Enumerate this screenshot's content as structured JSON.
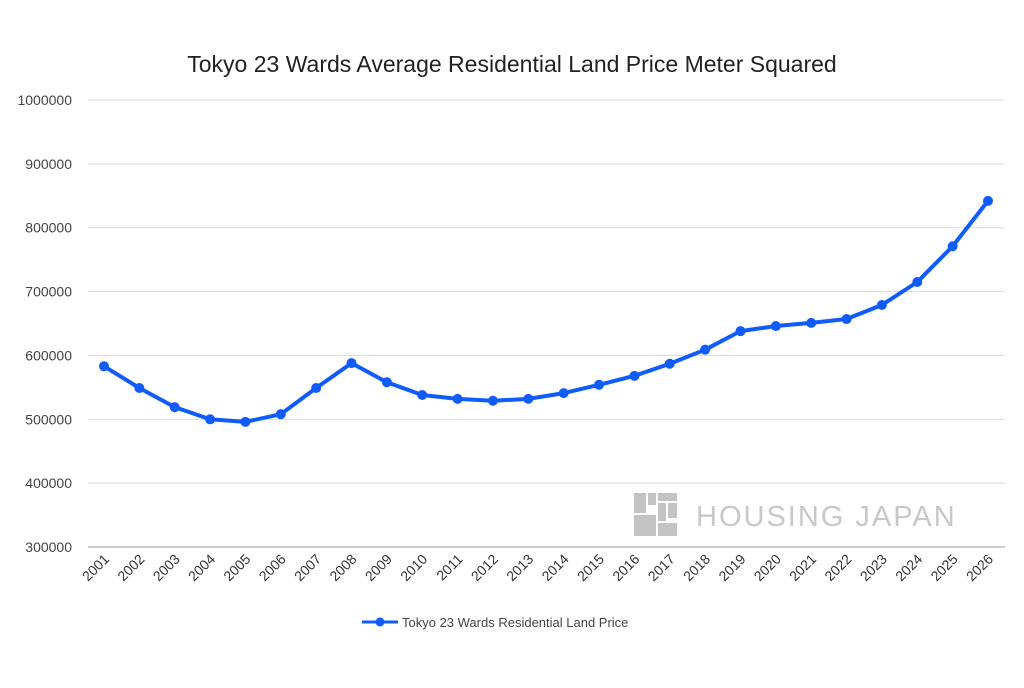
{
  "chart_data": {
    "type": "line",
    "title": "Tokyo 23 Wards Average Residential Land Price Meter Squared",
    "xlabel": "",
    "ylabel": "",
    "ylim": [
      300000,
      1000000
    ],
    "yticks": [
      "300000",
      "400000",
      "500000",
      "600000",
      "700000",
      "800000",
      "900000",
      "1000000"
    ],
    "grid": true,
    "legend_position": "bottom",
    "categories": [
      "2001",
      "2002",
      "2003",
      "2004",
      "2005",
      "2006",
      "2007",
      "2008",
      "2009",
      "2010",
      "2011",
      "2012",
      "2013",
      "2014",
      "2015",
      "2016",
      "2017",
      "2018",
      "2019",
      "2020",
      "2021",
      "2022",
      "2023",
      "2024",
      "2025",
      "2026"
    ],
    "series": [
      {
        "name": "Tokyo 23 Wards Residential Land Price",
        "color": "#0f5cfa",
        "values": [
          583000,
          549000,
          519000,
          500000,
          496000,
          508000,
          549000,
          588000,
          558000,
          538000,
          532000,
          529000,
          532000,
          541000,
          554000,
          568000,
          587000,
          609000,
          638000,
          646000,
          651000,
          657000,
          679000,
          715000,
          771000,
          842000
        ]
      }
    ]
  },
  "watermark": {
    "text": "HOUSING JAPAN"
  }
}
